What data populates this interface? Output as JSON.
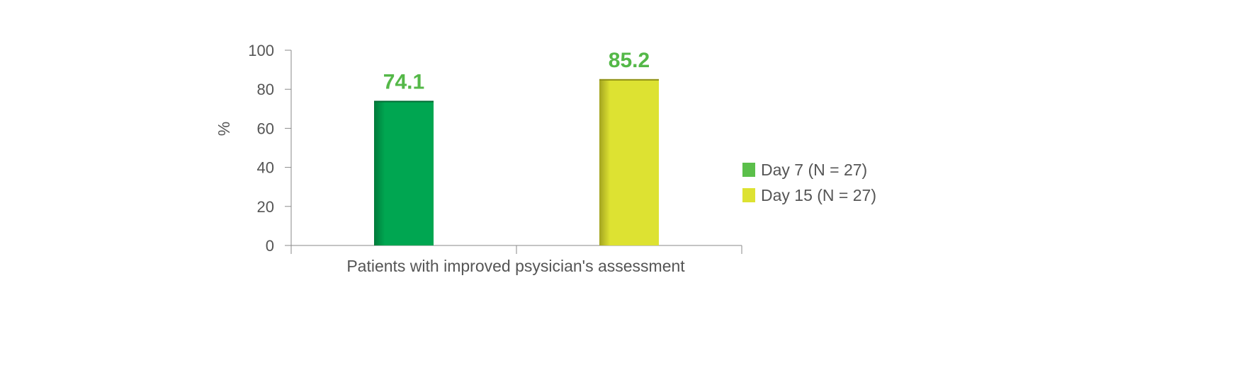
{
  "chart_data": {
    "type": "bar",
    "categories": [
      "Patients with improved psysician's assessment"
    ],
    "series": [
      {
        "name": "Day 7 (N = 27)",
        "values": [
          74.1
        ],
        "color": "#00A651",
        "legend_color": "#5BBF4A",
        "label_color": "#54B848"
      },
      {
        "name": "Day 15 (N = 27)",
        "values": [
          85.2
        ],
        "color": "#DDE232",
        "legend_color": "#DDE232",
        "label_color": "#54B848"
      }
    ],
    "value_labels": [
      "74.1",
      "85.2"
    ],
    "ylabel": "%",
    "xlabel": "",
    "ylim": [
      0,
      100
    ],
    "yticks": [
      "0",
      "20",
      "40",
      "60",
      "80",
      "100"
    ],
    "grid": false,
    "legend_placement": "right",
    "axis_color": "#8a8a8a",
    "text_color": "#555555"
  }
}
